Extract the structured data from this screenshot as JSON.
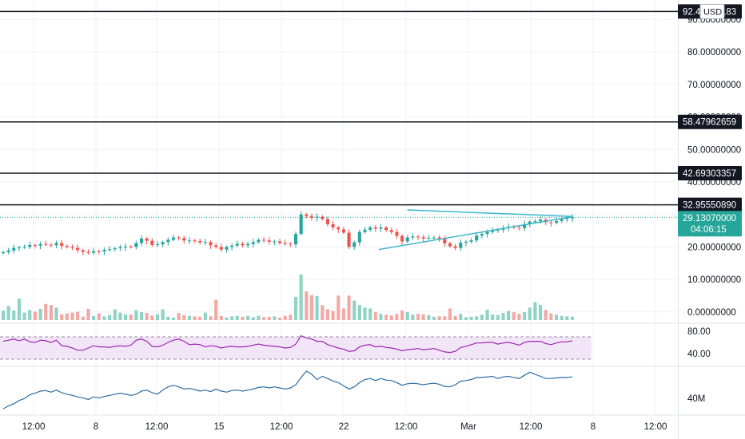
{
  "chart_data": {
    "type": "candlestick",
    "currency": "USD",
    "price_axis": {
      "ylim": [
        -3.0,
        96.0
      ],
      "ticks": [
        "0.00000000",
        "10.00000000",
        "20.00000000",
        "30.00000000",
        "40.00000000",
        "50.00000000",
        "60.00000000",
        "70.00000000",
        "80.00000000",
        "90.00000000"
      ],
      "tick_values": [
        0,
        10,
        20,
        30,
        40,
        50,
        60,
        70,
        80,
        90
      ]
    },
    "horizontal_levels": [
      {
        "label": "92.48200183",
        "value": 92.482
      },
      {
        "label": "58.47962659",
        "value": 58.4796
      },
      {
        "label": "42.69303357",
        "value": 42.693
      },
      {
        "label": "32.95550890",
        "value": 32.9555
      }
    ],
    "last_price": {
      "label": "29.13070000",
      "countdown": "04:06:15",
      "value": 29.1307
    },
    "x_axis": {
      "labels": [
        "12:00",
        "8",
        "12:00",
        "15",
        "12:00",
        "22",
        "12:00",
        "Mar",
        "12:00",
        "8",
        "12:00"
      ]
    },
    "trendlines": [
      {
        "name": "upper",
        "from": {
          "bar": 0.71,
          "price": 31.4
        },
        "to": {
          "bar": 1.0,
          "price": 29.4
        }
      },
      {
        "name": "lower",
        "from": {
          "bar": 0.66,
          "price": 19.2
        },
        "to": {
          "bar": 1.0,
          "price": 29.3
        }
      }
    ],
    "rsi": {
      "ticks": [
        "80.00",
        "40.00"
      ],
      "tick_values": [
        80,
        40
      ],
      "band": [
        30,
        70
      ],
      "ylim": [
        20,
        90
      ]
    },
    "obv": {
      "tick": "40M"
    },
    "close_series": [
      18.4,
      18.9,
      19.7,
      19.9,
      20.0,
      20.6,
      20.4,
      20.9,
      20.7,
      20.5,
      21.2,
      20.3,
      20.0,
      19.7,
      19.0,
      18.5,
      18.2,
      18.7,
      18.6,
      19.1,
      19.3,
      19.6,
      19.9,
      20.1,
      20.0,
      21.2,
      22.6,
      21.9,
      20.6,
      20.8,
      21.5,
      22.2,
      22.9,
      22.7,
      22.0,
      22.0,
      21.8,
      21.4,
      21.5,
      20.5,
      20.0,
      19.2,
      20.0,
      20.4,
      21.0,
      20.5,
      20.9,
      21.5,
      22.2,
      22.0,
      21.6,
      21.7,
      21.2,
      21.0,
      20.8,
      24.0,
      30.0,
      29.5,
      29.0,
      29.3,
      28.6,
      27.0,
      26.0,
      25.4,
      24.4,
      20.0,
      21.4,
      24.6,
      25.3,
      26.0,
      25.6,
      26.0,
      25.2,
      24.6,
      23.4,
      21.7,
      22.9,
      23.2,
      23.0,
      22.6,
      22.8,
      22.9,
      22.5,
      21.1,
      20.2,
      19.7,
      21.3,
      21.6,
      22.0,
      23.5,
      24.0,
      24.6,
      25.0,
      25.3,
      25.9,
      26.2,
      26.0,
      25.8,
      27.1,
      27.8,
      27.9,
      28.4,
      27.6,
      27.4,
      28.0,
      28.5,
      28.8,
      29.1
    ],
    "volume_series": [
      2.3,
      3.4,
      2.3,
      5.2,
      1.8,
      2.4,
      2.0,
      2.7,
      3.9,
      3.6,
      3.0,
      1.4,
      1.6,
      1.8,
      2.0,
      0.8,
      2.7,
      1.0,
      1.6,
      0.9,
      1.2,
      2.6,
      1.8,
      1.4,
      1.3,
      2.4,
      1.9,
      1.7,
      1.1,
      1.4,
      2.6,
      0.8,
      0.6,
      1.7,
      1.2,
      1.0,
      0.9,
      0.8,
      1.8,
      0.9,
      4.9,
      1.0,
      0.6,
      0.9,
      1.0,
      0.8,
      1.0,
      0.7,
      1.0,
      0.7,
      0.8,
      0.9,
      0.6,
      1.0,
      1.3,
      5.6,
      11.0,
      6.9,
      6.0,
      5.8,
      3.6,
      2.6,
      2.2,
      5.9,
      2.8,
      5.9,
      4.7,
      3.6,
      3.0,
      2.8,
      1.9,
      1.5,
      1.3,
      1.1,
      1.5,
      2.3,
      1.9,
      1.3,
      1.5,
      1.4,
      1.2,
      0.8,
      0.9,
      0.9,
      2.8,
      1.0,
      1.5,
      0.7,
      0.8,
      0.9,
      1.3,
      2.5,
      1.3,
      1.2,
      1.7,
      2.2,
      1.9,
      1.5,
      1.9,
      3.0,
      4.3,
      3.7,
      2.5,
      1.6,
      1.3,
      1.0,
      0.9,
      0.8
    ],
    "rsi_series": [
      62,
      64,
      66,
      63,
      66,
      61,
      60,
      64,
      63,
      60,
      64,
      54,
      53,
      50,
      46,
      46,
      50,
      54,
      52,
      52,
      51,
      53,
      54,
      53,
      55,
      64,
      66,
      62,
      53,
      52,
      55,
      60,
      64,
      66,
      62,
      56,
      57,
      56,
      52,
      54,
      53,
      50,
      52,
      53,
      52,
      52,
      53,
      55,
      57,
      55,
      54,
      53,
      52,
      50,
      51,
      57,
      72,
      68,
      66,
      62,
      62,
      56,
      53,
      50,
      48,
      44,
      45,
      52,
      55,
      56,
      52,
      53,
      51,
      50,
      48,
      45,
      47,
      48,
      49,
      47,
      48,
      49,
      46,
      43,
      42,
      44,
      51,
      53,
      56,
      59,
      59,
      60,
      60,
      57,
      59,
      60,
      58,
      55,
      60,
      62,
      62,
      62,
      58,
      56,
      59,
      61,
      61,
      63
    ],
    "obv_series": [
      2,
      8,
      12,
      18,
      22,
      29,
      32,
      36,
      37,
      34,
      38,
      33,
      30,
      28,
      25,
      23,
      20,
      25,
      23,
      26,
      28,
      30,
      32,
      30,
      28,
      30,
      36,
      38,
      33,
      30,
      38,
      44,
      47,
      44,
      40,
      41,
      39,
      36,
      38,
      35,
      40,
      36,
      34,
      37,
      38,
      36,
      38,
      40,
      43,
      44,
      42,
      44,
      42,
      40,
      42,
      48,
      62,
      74,
      68,
      58,
      64,
      60,
      55,
      52,
      46,
      40,
      44,
      52,
      58,
      60,
      56,
      60,
      57,
      56,
      52,
      47,
      50,
      51,
      50,
      48,
      50,
      51,
      49,
      45,
      44,
      48,
      55,
      56,
      58,
      62,
      62,
      63,
      64,
      60,
      63,
      64,
      62,
      60,
      66,
      72,
      68,
      64,
      60,
      60,
      61,
      62,
      62,
      63
    ]
  }
}
